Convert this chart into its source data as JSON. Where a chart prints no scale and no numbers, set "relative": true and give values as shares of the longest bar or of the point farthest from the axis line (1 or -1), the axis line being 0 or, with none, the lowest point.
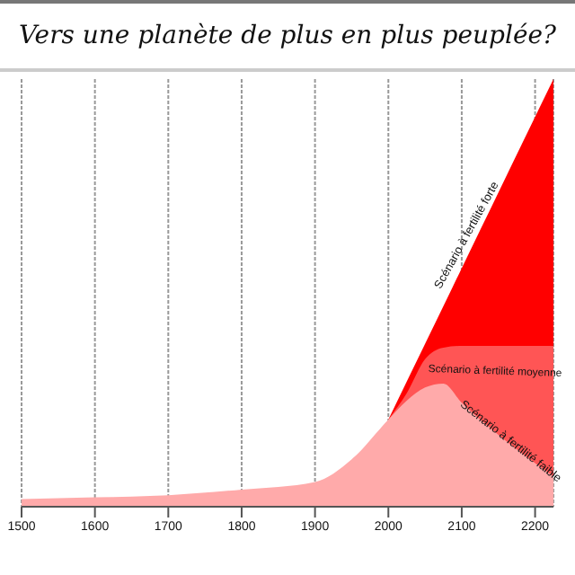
{
  "chart_data": {
    "type": "area",
    "title": "Vers une planète de plus en plus peuplée?",
    "relative": true,
    "xlim": [
      1500,
      2225
    ],
    "xticks": [
      1500,
      1600,
      1700,
      1800,
      1900,
      2000,
      2100,
      2200
    ],
    "grid": "x",
    "legend": false,
    "series": [
      {
        "name": "Scénario à fertilité forte",
        "color": "#ff0000",
        "x": [
          2000,
          2050,
          2075,
          2100,
          2150,
          2200,
          2225
        ],
        "values": [
          0.204,
          0.381,
          0.469,
          0.558,
          0.735,
          0.912,
          1
        ]
      },
      {
        "name": "Scénario à fertilité moyenne",
        "color": "#ff5555",
        "x": [
          2000,
          2025,
          2050,
          2075,
          2100,
          2150,
          2200,
          2225
        ],
        "values": [
          0.204,
          0.265,
          0.345,
          0.372,
          0.376,
          0.376,
          0.376,
          0.376
        ]
      },
      {
        "name": "Scénario à fertilité faible",
        "color": "#ffaaaa",
        "x": [
          1500,
          1600,
          1700,
          1800,
          1900,
          1950,
          2000,
          2025,
          2050,
          2075,
          2100,
          2150,
          2200,
          2225
        ],
        "values": [
          0.018,
          0.022,
          0.027,
          0.04,
          0.058,
          0.111,
          0.204,
          0.248,
          0.279,
          0.288,
          0.243,
          0.168,
          0.102,
          0.071
        ]
      }
    ]
  }
}
